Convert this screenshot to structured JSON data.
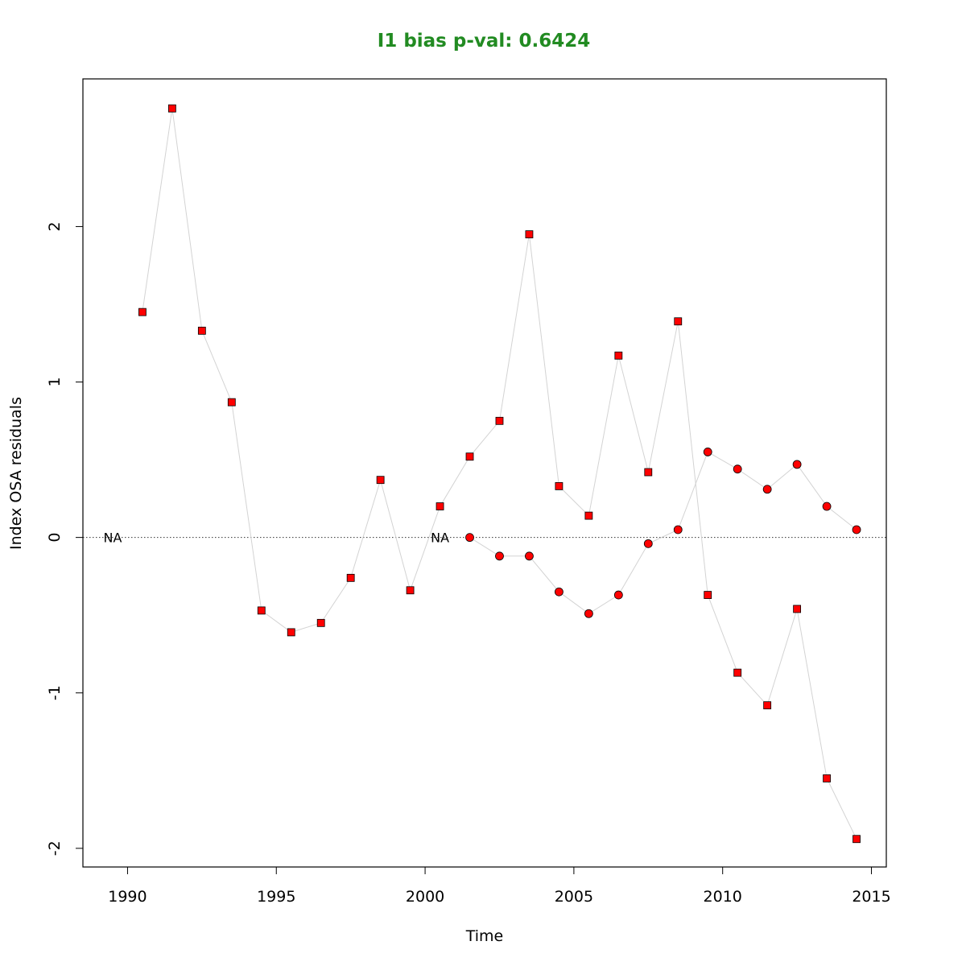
{
  "chart_data": {
    "type": "scatter",
    "title": "I1 bias p-val: 0.6424",
    "title_color": "#228B22",
    "xlabel": "Time",
    "ylabel": "Index OSA residuals",
    "xlim": [
      1988.5,
      2015.5
    ],
    "ylim": [
      -2.12,
      2.95
    ],
    "x_ticks": [
      1990,
      1995,
      2000,
      2005,
      2010,
      2015
    ],
    "y_ticks": [
      -2,
      -1,
      0,
      1,
      2
    ],
    "reference_line": 0,
    "point_fill": "#ff0000",
    "line_color": "#d3d3d3",
    "series": [
      {
        "marker": "square",
        "x": [
          1989.5,
          1990.5,
          1991.5,
          1992.5,
          1993.5,
          1994.5,
          1995.5,
          1996.5,
          1997.5,
          1998.5,
          1999.5,
          2000.5,
          2001.5,
          2002.5,
          2003.5,
          2004.5,
          2005.5,
          2006.5,
          2007.5,
          2008.5,
          2009.5,
          2010.5,
          2011.5,
          2012.5,
          2013.5,
          2014.5
        ],
        "y": [
          null,
          1.45,
          2.76,
          1.33,
          0.87,
          -0.47,
          -0.61,
          -0.55,
          -0.26,
          0.37,
          -0.34,
          0.2,
          0.52,
          0.75,
          1.95,
          0.33,
          0.14,
          1.17,
          0.42,
          1.39,
          -0.37,
          -0.87,
          -1.08,
          -0.46,
          -1.55,
          -1.94
        ]
      },
      {
        "marker": "circle",
        "x": [
          2000.5,
          2001.5,
          2002.5,
          2003.5,
          2004.5,
          2005.5,
          2006.5,
          2007.5,
          2008.5,
          2009.5,
          2010.5,
          2011.5,
          2012.5,
          2013.5,
          2014.5
        ],
        "y": [
          null,
          0.0,
          -0.12,
          -0.12,
          -0.35,
          -0.49,
          -0.37,
          -0.04,
          0.05,
          0.55,
          0.44,
          0.31,
          0.47,
          0.2,
          0.05
        ]
      }
    ],
    "na_label": "NA"
  }
}
